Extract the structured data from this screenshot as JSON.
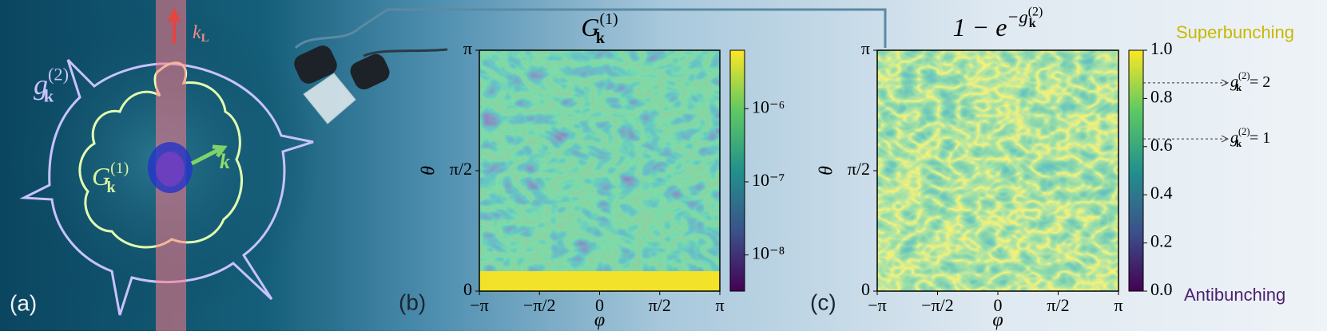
{
  "panel_a": {
    "label": "(a)",
    "g2": {
      "base": "g",
      "sub": "k",
      "sup": "(2)"
    },
    "G1": {
      "base": "G",
      "sub": "k",
      "sup": "(1)"
    },
    "kL": {
      "base": "k",
      "sub": "L"
    },
    "k": {
      "base": "k"
    }
  },
  "panel_b": {
    "label": "(b)",
    "title": {
      "base": "G",
      "sub": "k",
      "sup": "(1)"
    },
    "xlabel": "φ",
    "ylabel": "θ",
    "xlim": [
      -3.1416,
      3.1416
    ],
    "xticks": [
      {
        "value": -3.1416,
        "label": "−π"
      },
      {
        "value": -1.5708,
        "label": "−π/2"
      },
      0,
      {
        "value": 1.5708,
        "label": "π/2"
      },
      {
        "value": 3.1416,
        "label": "π"
      }
    ],
    "ylim": [
      0,
      3.1416
    ],
    "yticks": [
      0,
      {
        "value": 1.5708,
        "label": "π/2"
      },
      {
        "value": 3.1416,
        "label": "π"
      }
    ],
    "colorbar": {
      "scale": "log",
      "lim": [
        3.2e-09,
        6.3e-06
      ],
      "ticks": [
        {
          "value": 1e-08,
          "label": "10⁻⁸"
        },
        {
          "value": 1e-07,
          "label": "10⁻⁷"
        },
        {
          "value": 1e-06,
          "label": "10⁻⁶"
        }
      ]
    }
  },
  "panel_c": {
    "label": "(c)",
    "title": {
      "base": "1 − e",
      "exp": {
        "base": "−g",
        "sub": "k",
        "sup": "(2)"
      }
    },
    "xlabel": "φ",
    "ylabel": "θ",
    "xlim": [
      -3.1416,
      3.1416
    ],
    "xticks": [
      {
        "value": -3.1416,
        "label": "−π"
      },
      {
        "value": -1.5708,
        "label": "−π/2"
      },
      0,
      {
        "value": 1.5708,
        "label": "π/2"
      },
      {
        "value": 3.1416,
        "label": "π"
      }
    ],
    "ylim": [
      0,
      3.1416
    ],
    "yticks": [
      0,
      {
        "value": 1.5708,
        "label": "π/2"
      },
      {
        "value": 3.1416,
        "label": "π"
      }
    ],
    "colorbar": {
      "scale": "linear",
      "lim": [
        0,
        1
      ],
      "ticks": [
        {
          "value": 0,
          "label": "0.0"
        },
        {
          "value": 0.2,
          "label": "0.2"
        },
        {
          "value": 0.4,
          "label": "0.4"
        },
        {
          "value": 0.6,
          "label": "0.6"
        },
        {
          "value": 0.8,
          "label": "0.8"
        },
        {
          "value": 1,
          "label": "1.0"
        }
      ]
    },
    "top_label": "Superbunching",
    "bottom_label": "Antibunching",
    "annotations": [
      {
        "base": "g",
        "sub": "k",
        "sup": "(2)",
        "rhs": "= 2",
        "value": 2
      },
      {
        "base": "g",
        "sub": "k",
        "sup": "(2)",
        "rhs": "= 1",
        "value": 1
      }
    ]
  }
}
